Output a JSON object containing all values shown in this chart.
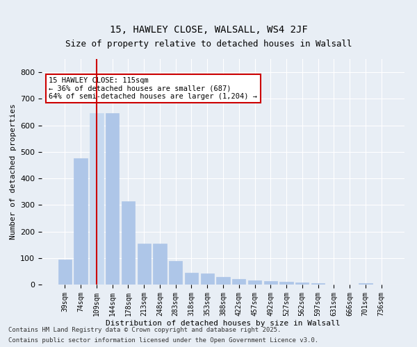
{
  "title_line1": "15, HAWLEY CLOSE, WALSALL, WS4 2JF",
  "title_line2": "Size of property relative to detached houses in Walsall",
  "xlabel": "Distribution of detached houses by size in Walsall",
  "ylabel": "Number of detached properties",
  "bar_labels": [
    "39sqm",
    "74sqm",
    "109sqm",
    "144sqm",
    "178sqm",
    "213sqm",
    "248sqm",
    "283sqm",
    "318sqm",
    "353sqm",
    "388sqm",
    "422sqm",
    "457sqm",
    "492sqm",
    "527sqm",
    "562sqm",
    "597sqm",
    "631sqm",
    "666sqm",
    "701sqm",
    "736sqm"
  ],
  "bar_values": [
    95,
    475,
    645,
    645,
    315,
    155,
    155,
    90,
    45,
    42,
    28,
    20,
    15,
    13,
    10,
    7,
    5,
    0,
    0,
    5,
    0
  ],
  "bar_color": "#aec6e8",
  "bar_edge_color": "#aec6e8",
  "highlight_bar_index": 2,
  "highlight_bar_color": "#c6d9f0",
  "vline_x": 2,
  "vline_color": "#cc0000",
  "annotation_title": "15 HAWLEY CLOSE: 115sqm",
  "annotation_line2": "← 36% of detached houses are smaller (687)",
  "annotation_line3": "64% of semi-detached houses are larger (1,204) →",
  "annotation_box_color": "#cc0000",
  "ylim": [
    0,
    850
  ],
  "yticks": [
    0,
    100,
    200,
    300,
    400,
    500,
    600,
    700,
    800
  ],
  "background_color": "#e8eef5",
  "axes_bg_color": "#e8eef5",
  "grid_color": "#ffffff",
  "footer_line1": "Contains HM Land Registry data © Crown copyright and database right 2025.",
  "footer_line2": "Contains public sector information licensed under the Open Government Licence v3.0."
}
